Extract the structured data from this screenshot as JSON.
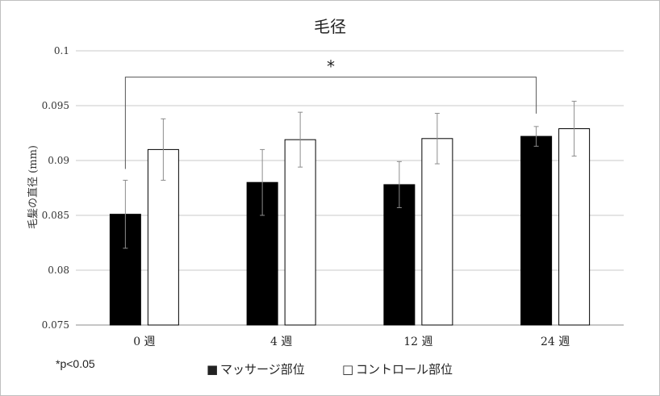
{
  "chart_data": {
    "type": "bar",
    "title": "毛径",
    "ylabel": "毛髪の直径 (mm)",
    "xlabel": "",
    "ylim": [
      0.075,
      0.1
    ],
    "yticks": [
      0.075,
      0.08,
      0.085,
      0.09,
      0.095,
      0.1
    ],
    "ytick_labels": [
      "0.075",
      "0.08",
      "0.085",
      "0.09",
      "0.095",
      "0.1"
    ],
    "categories": [
      "0 週",
      "4 週",
      "12 週",
      "24 週"
    ],
    "grid": true,
    "legend_position": "bottom",
    "series": [
      {
        "name": "マッサージ部位",
        "legend_marker": "■",
        "color": "#000000",
        "values": [
          0.0851,
          0.088,
          0.0878,
          0.0922
        ],
        "errors": [
          0.0031,
          0.003,
          0.0021,
          0.0009
        ]
      },
      {
        "name": "コントロール部位",
        "legend_marker": "□",
        "color": "#ffffff",
        "values": [
          0.091,
          0.0919,
          0.092,
          0.0929
        ],
        "errors": [
          0.0028,
          0.0025,
          0.0023,
          0.0025
        ]
      }
    ],
    "significance": {
      "label": "*",
      "from_category": 0,
      "to_category": 3,
      "series": 0,
      "bracket_level": 0.0976
    },
    "note": "*p<0.05"
  }
}
